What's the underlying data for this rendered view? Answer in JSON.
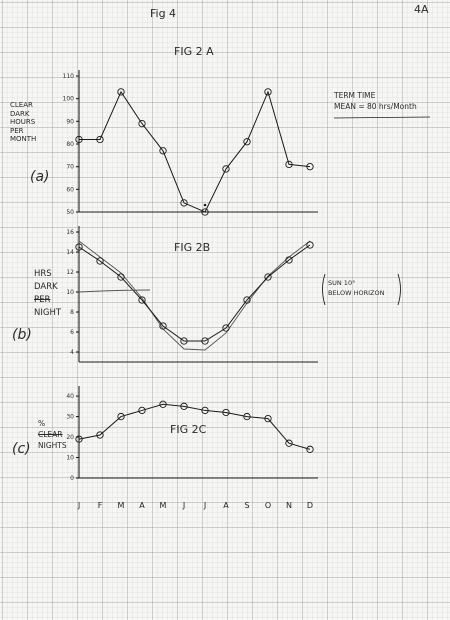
{
  "page": {
    "page_label": "4A",
    "fig_heading": "Fig 4",
    "panel_a_label": "(a)",
    "panel_b_label": "(b)",
    "panel_c_label": "(c)"
  },
  "annotations": {
    "term_time_line1": "TERM TIME",
    "term_time_line2": "MEAN = 80 hrs/Month",
    "sun_note_line1": "SUN 10°",
    "sun_note_line2": "BELOW HORIZON"
  },
  "colors": {
    "ink": "#1a1a1a",
    "grid": "#969696",
    "paper": "#f6f6f4"
  },
  "chart_data": [
    {
      "type": "line",
      "title": "FIG 2 A",
      "ylabel_lines": [
        "CLEAR",
        "DARK",
        "HOURS",
        "PER",
        "MONTH"
      ],
      "categories": [
        "J",
        "F",
        "M",
        "A",
        "M",
        "J",
        "J",
        "A",
        "S",
        "O",
        "N",
        "D"
      ],
      "values": [
        82,
        82,
        103,
        89,
        77,
        54,
        50,
        69,
        81,
        103,
        71,
        70
      ],
      "ylim": [
        50,
        110
      ],
      "yticks": [
        110,
        100,
        90,
        80,
        70,
        60,
        50
      ],
      "mean_value": 80,
      "grid": true
    },
    {
      "type": "line",
      "title": "FIG 2B",
      "ylabel_lines": [
        "HRS",
        "DARK",
        "PER",
        "NIGHT"
      ],
      "ylabel_struck_index": 2,
      "categories": [
        "J",
        "F",
        "M",
        "A",
        "M",
        "J",
        "J",
        "A",
        "S",
        "O",
        "N",
        "D"
      ],
      "series": [
        {
          "values": [
            14.5,
            13.1,
            11.5,
            9.2,
            6.6,
            5.1,
            5.1,
            6.4,
            9.2,
            11.5,
            13.2,
            14.7
          ]
        },
        {
          "values": [
            15.1,
            13.5,
            11.9,
            9.4,
            6.3,
            4.3,
            4.2,
            5.9,
            8.9,
            11.6,
            13.5,
            15.1
          ]
        }
      ],
      "ylim": [
        3,
        16
      ],
      "yticks": [
        16,
        14,
        12,
        10,
        8,
        6,
        4
      ],
      "grid": true
    },
    {
      "type": "line",
      "title": "FIG 2C",
      "ylabel_lines": [
        "%",
        "CLEAR",
        "NIGHTS"
      ],
      "ylabel_struck_index": 1,
      "categories": [
        "J",
        "F",
        "M",
        "A",
        "M",
        "J",
        "J",
        "A",
        "S",
        "O",
        "N",
        "D"
      ],
      "values": [
        19,
        21,
        30,
        33,
        36,
        35,
        33,
        32,
        30,
        29,
        17,
        14
      ],
      "ylim": [
        0,
        42
      ],
      "yticks": [
        40,
        30,
        20,
        10,
        0
      ],
      "grid": true
    }
  ]
}
